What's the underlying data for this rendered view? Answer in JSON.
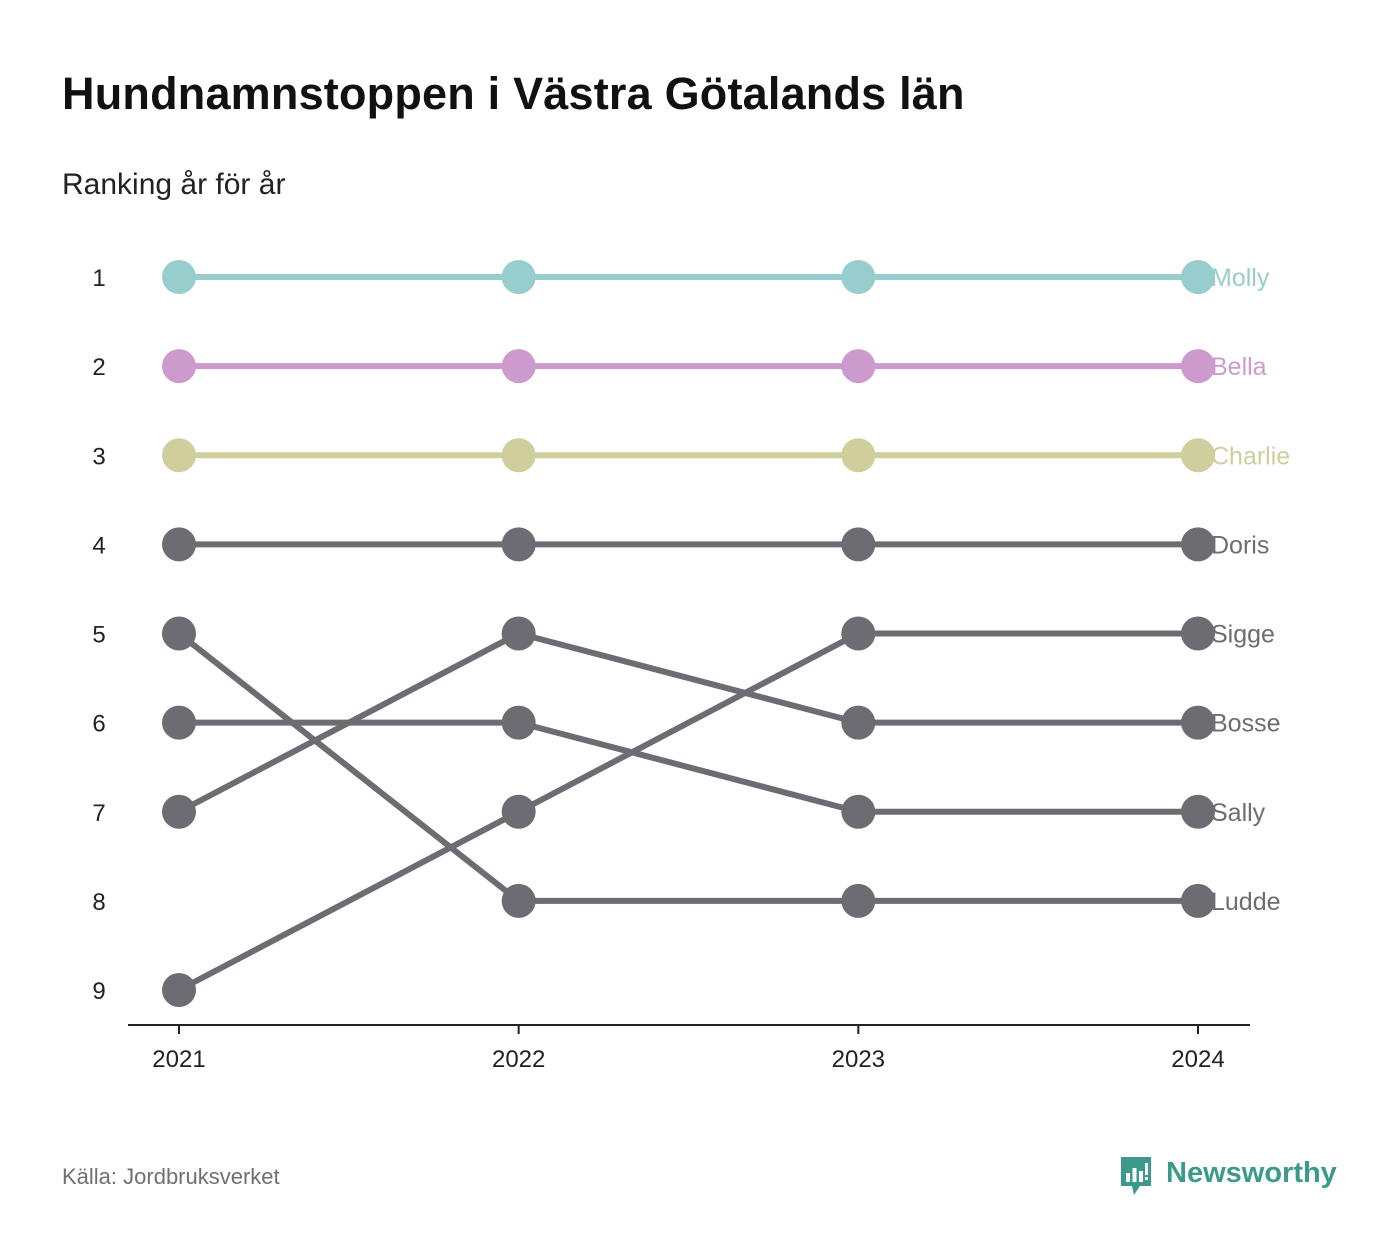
{
  "header": {
    "title": "Hundnamnstoppen i Västra Götalands län",
    "subtitle": "Ranking år för år"
  },
  "footer": {
    "source": "Källa: Jordbruksverket",
    "brand": "Newsworthy"
  },
  "colors": {
    "molly": "#97cdcc",
    "bella": "#cd9acd",
    "charlie": "#cfcf9d",
    "grey": "#6d6c73",
    "axis": "#222222",
    "brand": "#3c9a8d"
  },
  "icons": {
    "brand_logo": "newsworthy-logo-icon"
  },
  "chart_data": {
    "type": "line",
    "subtype": "bump",
    "x": [
      "2021",
      "2022",
      "2023",
      "2024"
    ],
    "y_ticks": [
      "1",
      "2",
      "3",
      "4",
      "5",
      "6",
      "7",
      "8",
      "9"
    ],
    "ylim": [
      1,
      9
    ],
    "y_reversed": true,
    "grid": false,
    "legend": "direct labels at the right end of each line",
    "series": [
      {
        "name": "Molly",
        "values": [
          1,
          1,
          1,
          1
        ],
        "color": "#97cdcc"
      },
      {
        "name": "Bella",
        "values": [
          2,
          2,
          2,
          2
        ],
        "color": "#cd9acd"
      },
      {
        "name": "Charlie",
        "values": [
          3,
          3,
          3,
          3
        ],
        "color": "#cfcf9d"
      },
      {
        "name": "Doris",
        "values": [
          4,
          4,
          4,
          4
        ],
        "color": "#6d6c73"
      },
      {
        "name": "Bosse",
        "values": [
          7,
          5,
          6,
          6
        ],
        "color": "#6d6c73"
      },
      {
        "name": "Sally",
        "values": [
          6,
          6,
          7,
          7
        ],
        "color": "#6d6c73"
      },
      {
        "name": "Sigge",
        "values": [
          9,
          7,
          5,
          5
        ],
        "color": "#6d6c73"
      },
      {
        "name": "Ludde",
        "values": [
          5,
          8,
          8,
          8
        ],
        "color": "#6d6c73"
      }
    ]
  }
}
